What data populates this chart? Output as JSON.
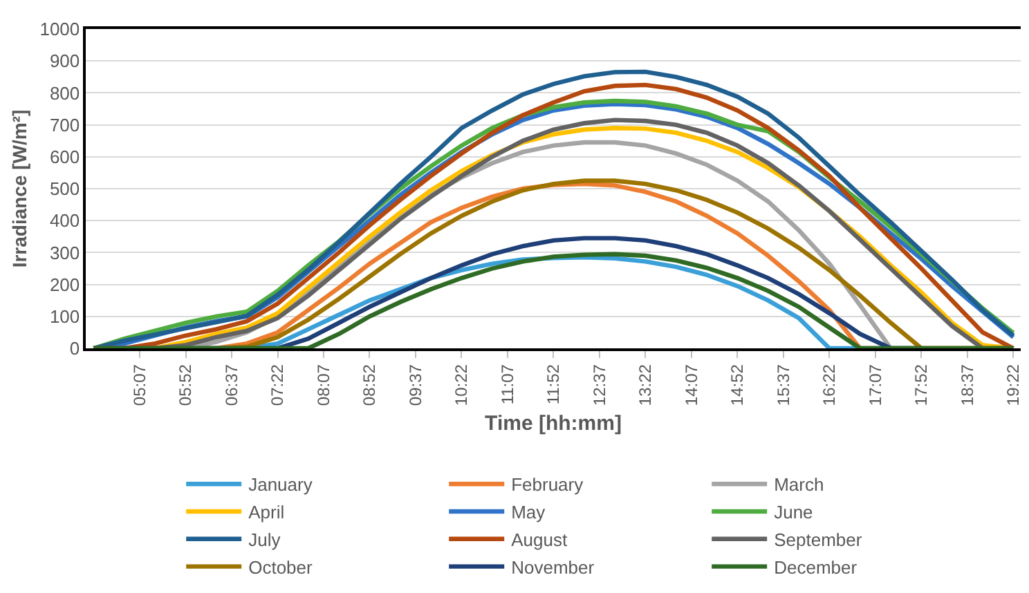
{
  "chart_data": {
    "type": "line",
    "xlabel": "Time [hh:mm]",
    "ylabel": "Irradiance [W/m²]",
    "x": [
      4.37,
      4.87,
      5.37,
      5.87,
      6.37,
      6.87,
      7.37,
      7.87,
      8.37,
      8.87,
      9.37,
      9.87,
      10.37,
      10.87,
      11.37,
      11.87,
      12.37,
      12.87,
      13.37,
      13.87,
      14.37,
      14.87,
      15.37,
      15.87,
      16.37,
      16.87,
      17.37,
      17.87,
      18.37,
      18.87,
      19.37
    ],
    "xlim": [
      4.24,
      19.49
    ],
    "xticks": [
      {
        "value": 5.12,
        "label": "05:07"
      },
      {
        "value": 5.87,
        "label": "05:52"
      },
      {
        "value": 6.62,
        "label": "06:37"
      },
      {
        "value": 7.37,
        "label": "07:22"
      },
      {
        "value": 8.12,
        "label": "08:07"
      },
      {
        "value": 8.87,
        "label": "08:52"
      },
      {
        "value": 9.62,
        "label": "09:37"
      },
      {
        "value": 10.37,
        "label": "10:22"
      },
      {
        "value": 11.12,
        "label": "11:07"
      },
      {
        "value": 11.87,
        "label": "11:52"
      },
      {
        "value": 12.62,
        "label": "12:37"
      },
      {
        "value": 13.37,
        "label": "13:22"
      },
      {
        "value": 14.12,
        "label": "14:07"
      },
      {
        "value": 14.87,
        "label": "14:52"
      },
      {
        "value": 15.62,
        "label": "15:37"
      },
      {
        "value": 16.37,
        "label": "16:22"
      },
      {
        "value": 17.12,
        "label": "17:07"
      },
      {
        "value": 17.87,
        "label": "17:52"
      },
      {
        "value": 18.62,
        "label": "18:37"
      },
      {
        "value": 19.37,
        "label": "19:22"
      }
    ],
    "ylim": [
      0,
      1000
    ],
    "yticks": [
      0,
      100,
      200,
      300,
      400,
      500,
      600,
      700,
      800,
      900,
      1000
    ],
    "grid": "y",
    "legend": "bottom",
    "marker": "none",
    "line_style": "solid",
    "series": [
      {
        "name": "January",
        "color": "#3ca0d8",
        "values": [
          0,
          0,
          0,
          0,
          0,
          0,
          15,
          60,
          105,
          150,
          185,
          220,
          245,
          265,
          278,
          283,
          285,
          282,
          272,
          255,
          230,
          195,
          150,
          95,
          0,
          0,
          0,
          null,
          null,
          null,
          null
        ]
      },
      {
        "name": "February",
        "color": "#ed7d31",
        "values": [
          0,
          0,
          0,
          0,
          0,
          15,
          50,
          120,
          190,
          265,
          330,
          395,
          440,
          475,
          500,
          512,
          515,
          510,
          490,
          460,
          415,
          360,
          290,
          210,
          120,
          0,
          0,
          0,
          0,
          0,
          0
        ]
      },
      {
        "name": "March",
        "color": "#a5a5a5",
        "values": [
          0,
          0,
          0,
          0,
          20,
          50,
          100,
          175,
          260,
          340,
          415,
          480,
          535,
          580,
          615,
          635,
          645,
          645,
          635,
          610,
          575,
          525,
          460,
          370,
          265,
          135,
          0,
          0,
          0,
          0,
          0
        ]
      },
      {
        "name": "April",
        "color": "#ffc000",
        "values": [
          0,
          0,
          0,
          20,
          45,
          65,
          110,
          190,
          270,
          350,
          425,
          495,
          555,
          605,
          645,
          670,
          685,
          690,
          688,
          675,
          650,
          615,
          565,
          505,
          430,
          350,
          260,
          175,
          80,
          10,
          0
        ]
      },
      {
        "name": "May",
        "color": "#2f74c9",
        "values": [
          0,
          15,
          40,
          65,
          85,
          100,
          160,
          240,
          320,
          400,
          480,
          550,
          615,
          670,
          715,
          745,
          760,
          765,
          762,
          748,
          725,
          690,
          640,
          580,
          515,
          440,
          360,
          280,
          195,
          115,
          35
        ]
      },
      {
        "name": "June",
        "color": "#4eac40",
        "values": [
          0,
          30,
          55,
          80,
          100,
          115,
          180,
          260,
          335,
          420,
          500,
          570,
          635,
          690,
          730,
          755,
          770,
          775,
          772,
          758,
          735,
          700,
          680,
          615,
          535,
          460,
          380,
          295,
          210,
          125,
          48
        ]
      },
      {
        "name": "July",
        "color": "#1f6091",
        "values": [
          0,
          24,
          43,
          63,
          82,
          102,
          168,
          246,
          333,
          424,
          515,
          600,
          690,
          745,
          795,
          828,
          852,
          865,
          866,
          850,
          825,
          788,
          735,
          660,
          570,
          480,
          395,
          305,
          215,
          120,
          40
        ]
      },
      {
        "name": "August",
        "color": "#b5490f",
        "values": [
          0,
          0,
          15,
          40,
          60,
          85,
          140,
          220,
          300,
          385,
          465,
          540,
          610,
          675,
          730,
          770,
          805,
          822,
          825,
          812,
          785,
          745,
          690,
          620,
          540,
          440,
          345,
          250,
          150,
          50,
          0
        ]
      },
      {
        "name": "September",
        "color": "#636363",
        "values": [
          0,
          0,
          0,
          10,
          35,
          55,
          95,
          165,
          245,
          325,
          405,
          475,
          540,
          600,
          650,
          685,
          705,
          715,
          712,
          700,
          675,
          635,
          580,
          510,
          430,
          340,
          250,
          160,
          70,
          0,
          0
        ]
      },
      {
        "name": "October",
        "color": "#9e7400",
        "values": [
          0,
          0,
          0,
          0,
          0,
          5,
          35,
          90,
          155,
          225,
          295,
          360,
          415,
          460,
          495,
          515,
          525,
          525,
          515,
          495,
          465,
          425,
          375,
          315,
          245,
          165,
          80,
          0,
          0,
          0,
          0
        ]
      },
      {
        "name": "November",
        "color": "#1f3f78",
        "values": [
          0,
          0,
          0,
          0,
          0,
          0,
          0,
          30,
          80,
          130,
          175,
          220,
          260,
          295,
          320,
          338,
          345,
          345,
          338,
          320,
          295,
          260,
          220,
          170,
          110,
          45,
          0,
          0,
          null,
          null,
          null
        ]
      },
      {
        "name": "December",
        "color": "#2f6b25",
        "values": [
          0,
          0,
          0,
          0,
          0,
          0,
          0,
          0,
          45,
          100,
          145,
          185,
          220,
          250,
          272,
          287,
          293,
          295,
          290,
          275,
          252,
          220,
          180,
          130,
          65,
          0,
          0,
          0,
          0,
          0,
          0
        ]
      }
    ]
  }
}
